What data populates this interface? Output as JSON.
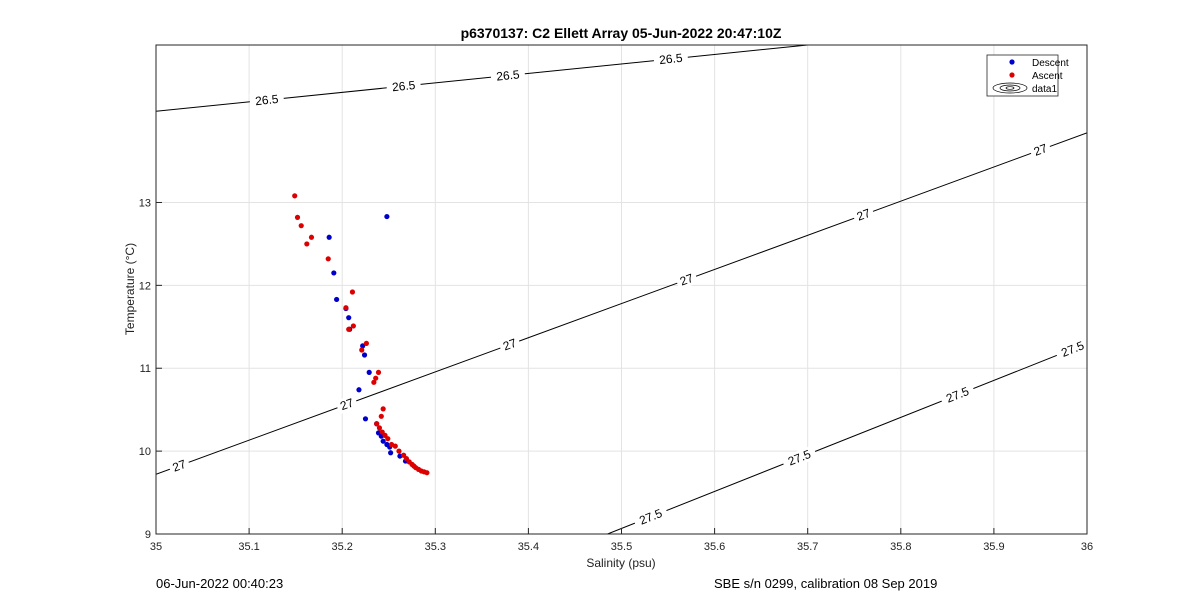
{
  "chart_data": {
    "type": "scatter",
    "title": "p6370137: C2 Ellett Array 05-Jun-2022 20:47:10Z",
    "xlabel": "Salinity (psu)",
    "ylabel": "Temperature (°C)",
    "xlim": [
      35,
      36
    ],
    "ylim": [
      9,
      14.9
    ],
    "xticks": [
      "35",
      "35.1",
      "35.2",
      "35.3",
      "35.4",
      "35.5",
      "35.6",
      "35.7",
      "35.8",
      "35.9",
      "36"
    ],
    "yticks": [
      "9",
      "10",
      "11",
      "12",
      "13"
    ],
    "grid": true,
    "legend_position": "top-right",
    "legend": [
      "Descent",
      "Ascent",
      "data1"
    ],
    "series": [
      {
        "name": "Descent",
        "color": "#0000cc",
        "marker": "dot",
        "points": [
          [
            35.248,
            12.83
          ],
          [
            35.186,
            12.58
          ],
          [
            35.191,
            12.15
          ],
          [
            35.194,
            11.83
          ],
          [
            35.204,
            11.72
          ],
          [
            35.207,
            11.61
          ],
          [
            35.208,
            11.47
          ],
          [
            35.222,
            11.27
          ],
          [
            35.224,
            11.16
          ],
          [
            35.229,
            10.95
          ],
          [
            35.218,
            10.74
          ],
          [
            35.225,
            10.39
          ],
          [
            35.237,
            10.33
          ],
          [
            35.239,
            10.22
          ],
          [
            35.242,
            10.18
          ],
          [
            35.244,
            10.12
          ],
          [
            35.248,
            10.08
          ],
          [
            35.251,
            10.05
          ],
          [
            35.252,
            9.98
          ],
          [
            35.262,
            9.94
          ],
          [
            35.268,
            9.88
          ]
        ]
      },
      {
        "name": "Ascent",
        "color": "#dd0000",
        "marker": "dot",
        "points": [
          [
            35.149,
            13.08
          ],
          [
            35.152,
            12.82
          ],
          [
            35.156,
            12.72
          ],
          [
            35.167,
            12.58
          ],
          [
            35.162,
            12.5
          ],
          [
            35.185,
            12.32
          ],
          [
            35.211,
            11.92
          ],
          [
            35.204,
            11.73
          ],
          [
            35.212,
            11.51
          ],
          [
            35.207,
            11.47
          ],
          [
            35.226,
            11.3
          ],
          [
            35.221,
            11.22
          ],
          [
            35.239,
            10.95
          ],
          [
            35.236,
            10.88
          ],
          [
            35.234,
            10.83
          ],
          [
            35.244,
            10.51
          ],
          [
            35.242,
            10.42
          ],
          [
            35.237,
            10.33
          ],
          [
            35.24,
            10.28
          ],
          [
            35.243,
            10.23
          ],
          [
            35.246,
            10.19
          ],
          [
            35.249,
            10.15
          ],
          [
            35.253,
            10.08
          ],
          [
            35.257,
            10.06
          ],
          [
            35.261,
            10.0
          ],
          [
            35.266,
            9.95
          ],
          [
            35.269,
            9.91
          ],
          [
            35.272,
            9.87
          ],
          [
            35.275,
            9.84
          ],
          [
            35.277,
            9.82
          ],
          [
            35.279,
            9.8
          ],
          [
            35.282,
            9.78
          ],
          [
            35.285,
            9.76
          ],
          [
            35.288,
            9.75
          ],
          [
            35.291,
            9.74
          ]
        ]
      }
    ],
    "contours": [
      {
        "level": "26.5",
        "labels": [
          "26.5",
          "26.5",
          "26.5",
          "26.5"
        ]
      },
      {
        "level": "27",
        "labels": [
          "27",
          "27",
          "27",
          "27",
          "27",
          "27"
        ]
      },
      {
        "level": "27.5",
        "labels": [
          "27.5",
          "27.5",
          "27.5",
          "27.5"
        ]
      }
    ]
  },
  "footer": {
    "left": "06-Jun-2022 00:40:23",
    "right": "SBE s/n 0299, calibration 08 Sep 2019"
  }
}
